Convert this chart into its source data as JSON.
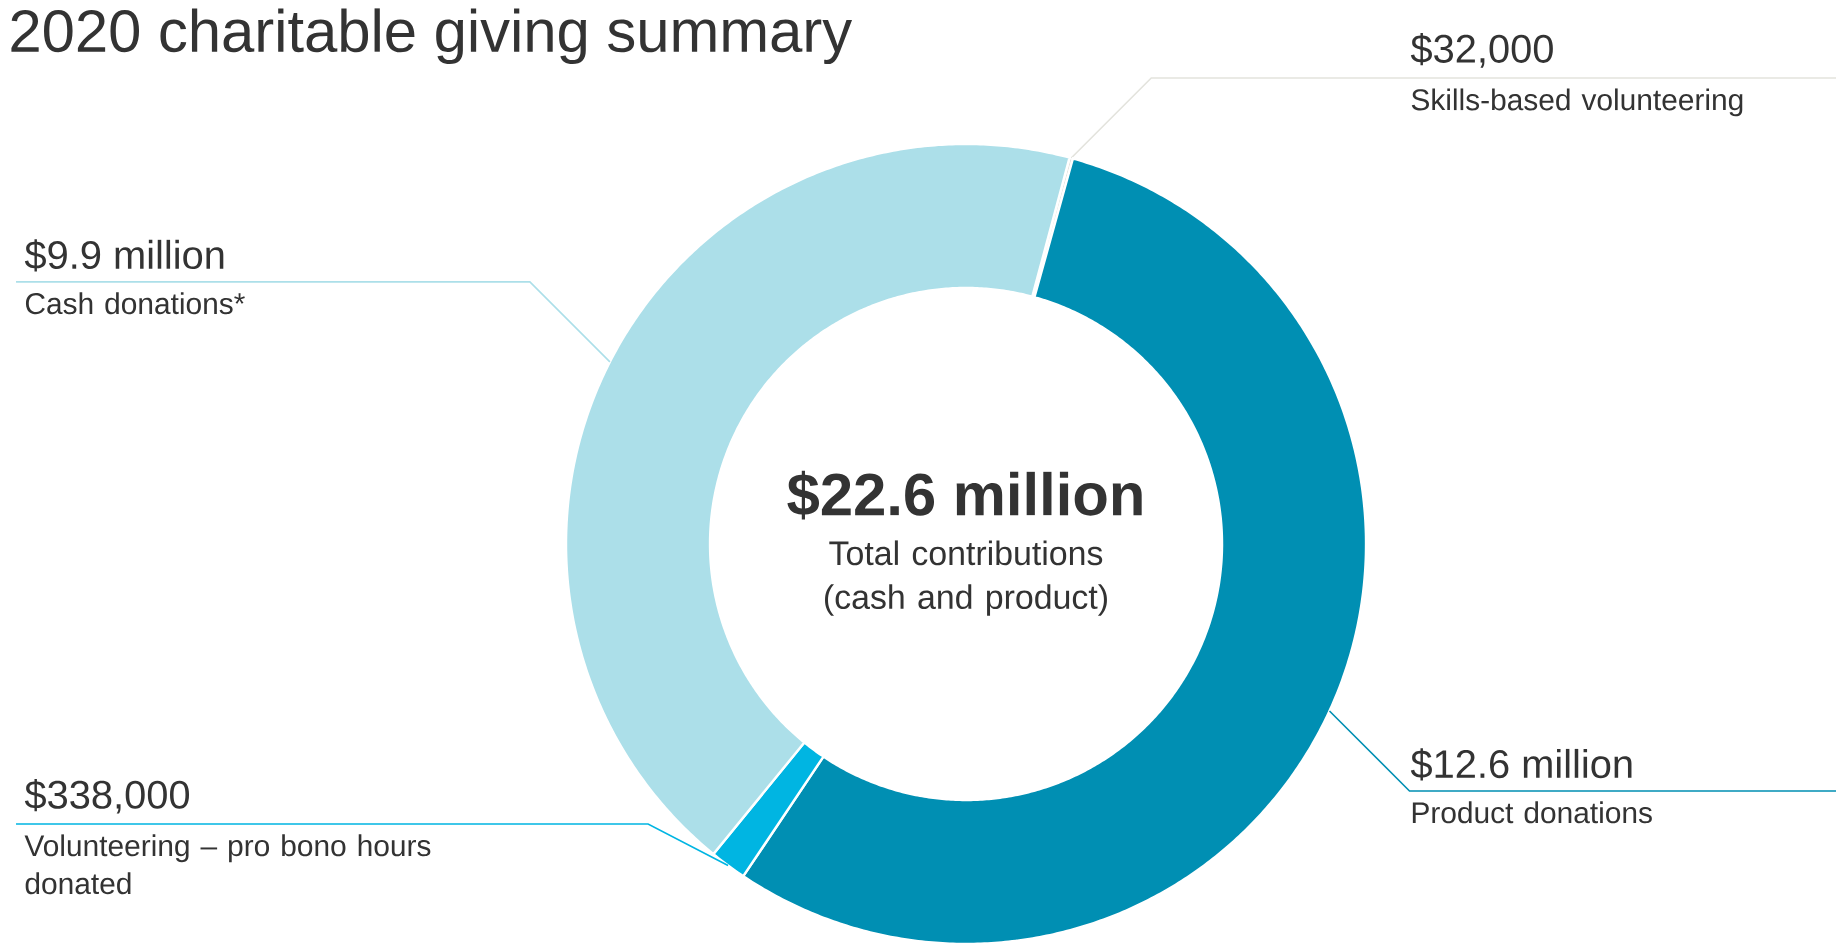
{
  "chart_data": {
    "type": "donut",
    "title": "2020 charitable giving summary",
    "categories": [
      "Skills-based volunteering",
      "Product donations",
      "Volunteering – pro bono hours donated",
      "Cash donations*"
    ],
    "values": [
      32000,
      12600000,
      338000,
      9900000
    ],
    "value_labels": [
      "$32,000",
      "$12.6 million",
      "$338,000",
      "$9.9 million"
    ],
    "colors": [
      "#e3e3dd",
      "#008fb3",
      "#00b5e2",
      "#acdfe9"
    ],
    "annotations": [
      "$22.6 million",
      "Total contributions (cash and product)"
    ]
  }
}
